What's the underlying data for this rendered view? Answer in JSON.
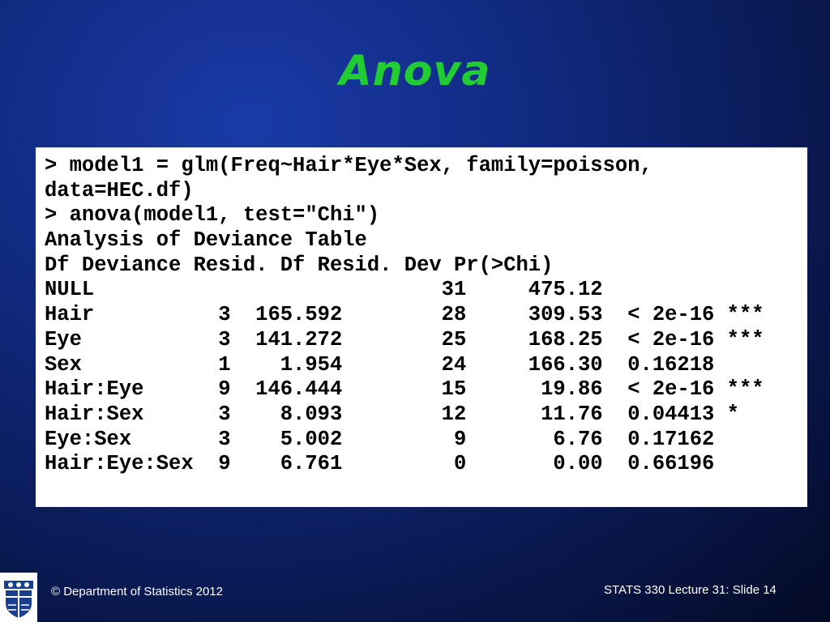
{
  "slide": {
    "title": "Anova"
  },
  "code": {
    "lines": [
      "> model1 = glm(Freq~Hair*Eye*Sex, family=poisson,",
      "data=HEC.df)",
      "> anova(model1, test=\"Chi\")",
      "Analysis of Deviance Table",
      "Df Deviance Resid. Df Resid. Dev Pr(>Chi)",
      "NULL                            31     475.12",
      "Hair          3  165.592        28     309.53  < 2e-16 ***",
      "Eye           3  141.272        25     168.25  < 2e-16 ***",
      "Sex           1    1.954        24     166.30  0.16218",
      "Hair:Eye      9  146.444        15      19.86  < 2e-16 ***",
      "Hair:Sex      3    8.093        12      11.76  0.04413 *",
      "Eye:Sex       3    5.002         9       6.76  0.17162",
      "Hair:Eye:Sex  9    6.761         0       0.00  0.66196"
    ]
  },
  "footer": {
    "copyright": "© Department of Statistics 2012",
    "slide_info": "STATS 330 Lecture 31: Slide 14"
  },
  "logo": {
    "icon": "university-crest-icon",
    "colors": {
      "blue": "#1b3f8f",
      "white": "#ffffff"
    }
  }
}
